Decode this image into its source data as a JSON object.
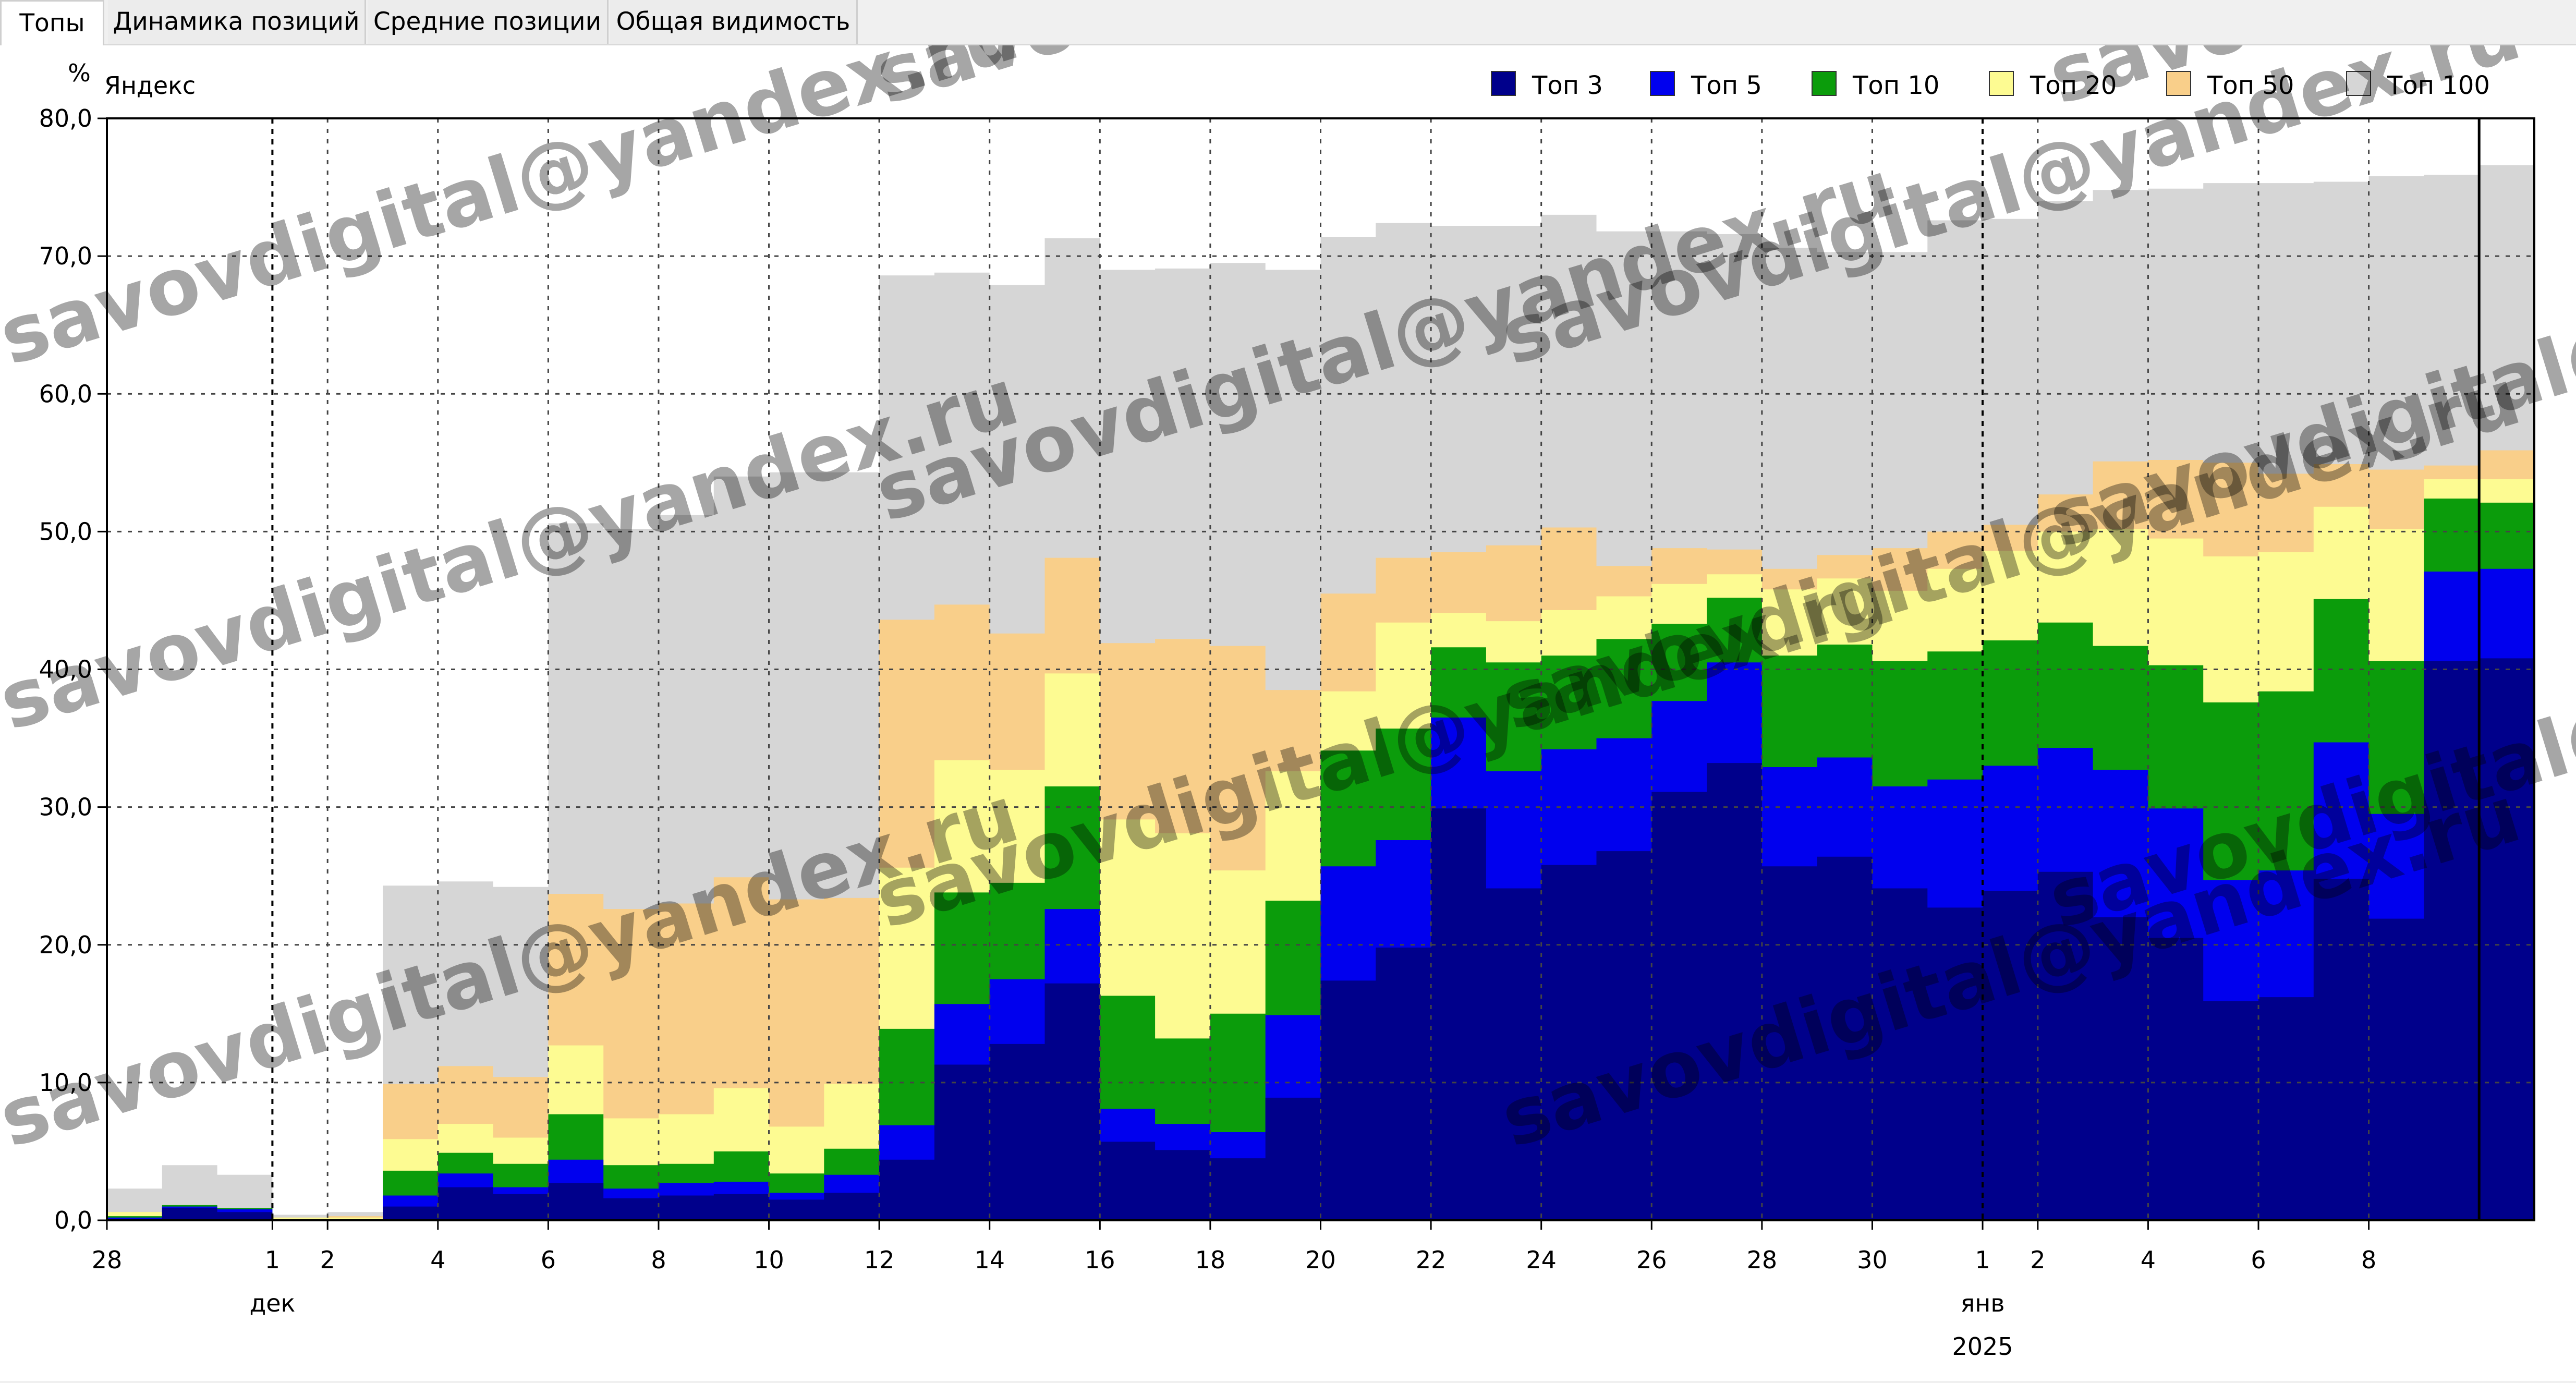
{
  "tabs": [
    {
      "label": "Топы",
      "active": true
    },
    {
      "label": "Динамика позиций",
      "active": false
    },
    {
      "label": "Средние позиции",
      "active": false
    },
    {
      "label": "Общая видимость",
      "active": false
    }
  ],
  "watermark": "savovdigital@yandex.ru",
  "chart_data": {
    "type": "area",
    "stacked": false,
    "step": true,
    "title": "Яндекс",
    "ylabel": "%",
    "ylim": [
      0,
      80
    ],
    "y_ticks": [
      "0,0",
      "10,0",
      "20,0",
      "30,0",
      "40,0",
      "50,0",
      "60,0",
      "70,0",
      "80,0"
    ],
    "x": [
      "2024-11-28",
      "2024-11-29",
      "2024-11-30",
      "2024-12-01",
      "2024-12-02",
      "2024-12-03",
      "2024-12-04",
      "2024-12-05",
      "2024-12-06",
      "2024-12-07",
      "2024-12-08",
      "2024-12-09",
      "2024-12-10",
      "2024-12-11",
      "2024-12-12",
      "2024-12-13",
      "2024-12-14",
      "2024-12-15",
      "2024-12-15",
      "2024-12-16",
      "2024-12-17",
      "2024-12-18",
      "2024-12-19",
      "2024-12-20",
      "2024-12-21",
      "2024-12-22",
      "2024-12-23",
      "2024-12-24",
      "2024-12-25",
      "2024-12-26",
      "2024-12-27",
      "2024-12-28",
      "2024-12-29",
      "2024-12-30",
      "2024-12-31",
      "2025-01-01",
      "2025-01-02",
      "2025-01-03",
      "2025-01-04",
      "2025-01-05",
      "2025-01-06",
      "2025-01-07",
      "2025-01-08",
      "2025-01-09",
      "2025-01-10"
    ],
    "x_ticks": [
      {
        "date": "2024-11-28",
        "label": "28"
      },
      {
        "date": "2024-12-01",
        "label": "1"
      },
      {
        "date": "2024-12-02",
        "label": "2"
      },
      {
        "date": "2024-12-04",
        "label": "4"
      },
      {
        "date": "2024-12-06",
        "label": "6"
      },
      {
        "date": "2024-12-08",
        "label": "8"
      },
      {
        "date": "2024-12-10",
        "label": "10"
      },
      {
        "date": "2024-12-12",
        "label": "12"
      },
      {
        "date": "2024-12-14",
        "label": "14"
      },
      {
        "date": "2024-12-16",
        "label": "16"
      },
      {
        "date": "2024-12-18",
        "label": "18"
      },
      {
        "date": "2024-12-20",
        "label": "20"
      },
      {
        "date": "2024-12-22",
        "label": "22"
      },
      {
        "date": "2024-12-24",
        "label": "24"
      },
      {
        "date": "2024-12-26",
        "label": "26"
      },
      {
        "date": "2024-12-28",
        "label": "28"
      },
      {
        "date": "2024-12-30",
        "label": "30"
      },
      {
        "date": "2025-01-01",
        "label": "1"
      },
      {
        "date": "2025-01-02",
        "label": "2"
      },
      {
        "date": "2025-01-04",
        "label": "4"
      },
      {
        "date": "2025-01-06",
        "label": "6"
      },
      {
        "date": "2025-01-08",
        "label": "8"
      }
    ],
    "month_labels": [
      {
        "date": "2024-12-01",
        "label": "дек"
      },
      {
        "date": "2025-01-01",
        "label": "янв"
      }
    ],
    "year_labels": [
      {
        "date": "2025-01-01",
        "label": "2025"
      }
    ],
    "month_boundaries": [
      "2024-12-01",
      "2025-01-01"
    ],
    "current_marker": "2025-01-10",
    "grid": true,
    "legend_position": "top-right",
    "series": [
      {
        "name": "Топ 100",
        "color": "#d6d6d6",
        "values": [
          2.3,
          4.0,
          3.3,
          0.4,
          0.6,
          24.3,
          24.6,
          24.2,
          50.6,
          50.2,
          51.2,
          54.0,
          54.3,
          54.3,
          68.6,
          68.8,
          67.9,
          71.3,
          71.3,
          69.0,
          69.1,
          69.5,
          69.0,
          71.4,
          72.4,
          72.2,
          72.2,
          73.0,
          71.8,
          71.8,
          71.6,
          70.6,
          70.3,
          70.3,
          72.6,
          72.7,
          74.0,
          74.8,
          74.9,
          75.3,
          75.3,
          75.4,
          75.8,
          75.9,
          76.6
        ]
      },
      {
        "name": "Топ 50",
        "color": "#f9cf8a",
        "values": [
          0.6,
          0.8,
          0.7,
          0.2,
          0.3,
          9.9,
          11.2,
          10.4,
          23.7,
          22.6,
          23.0,
          24.9,
          23.3,
          23.4,
          43.6,
          44.7,
          42.6,
          48.1,
          48.1,
          41.9,
          42.2,
          41.7,
          38.5,
          45.5,
          48.1,
          48.5,
          49.0,
          50.3,
          47.5,
          48.8,
          48.7,
          47.3,
          48.3,
          48.8,
          50.0,
          50.5,
          52.7,
          55.1,
          55.2,
          55.0,
          54.2,
          54.9,
          54.5,
          54.8,
          55.9
        ]
      },
      {
        "name": "Топ 20",
        "color": "#fdfb92",
        "values": [
          0.6,
          0.8,
          0.7,
          0.2,
          0.2,
          5.9,
          7.0,
          6.0,
          12.7,
          7.4,
          7.7,
          9.6,
          6.8,
          9.9,
          25.6,
          33.4,
          32.7,
          39.7,
          39.7,
          29.1,
          28.1,
          25.4,
          32.6,
          38.4,
          43.4,
          44.1,
          43.5,
          44.3,
          45.3,
          46.2,
          46.9,
          45.8,
          46.6,
          45.7,
          47.3,
          48.6,
          50.0,
          50.2,
          49.5,
          48.2,
          48.5,
          51.8,
          50.2,
          53.8,
          53.8
        ]
      },
      {
        "name": "Топ 10",
        "color": "#0b9c0b",
        "values": [
          0.3,
          1.1,
          0.9,
          0.0,
          0.0,
          3.6,
          4.9,
          4.1,
          7.7,
          4.0,
          4.1,
          5.0,
          3.4,
          5.2,
          13.9,
          23.8,
          24.5,
          31.5,
          31.5,
          16.3,
          13.2,
          15.0,
          23.2,
          34.1,
          35.7,
          41.6,
          40.5,
          41.0,
          42.2,
          43.3,
          45.2,
          41.0,
          41.8,
          40.6,
          41.3,
          42.1,
          43.4,
          41.7,
          40.3,
          37.6,
          38.4,
          45.1,
          40.6,
          52.4,
          52.1
        ]
      },
      {
        "name": "Топ 5",
        "color": "#0000ee",
        "values": [
          0.2,
          1.0,
          0.8,
          0.0,
          0.0,
          1.8,
          3.4,
          2.4,
          4.4,
          2.3,
          2.7,
          2.8,
          2.0,
          3.3,
          6.9,
          15.7,
          17.5,
          22.6,
          22.6,
          8.1,
          7.0,
          6.4,
          14.9,
          25.7,
          27.6,
          36.5,
          32.6,
          34.2,
          35.0,
          37.7,
          40.5,
          32.9,
          33.6,
          31.5,
          32.0,
          33.0,
          34.3,
          32.7,
          29.9,
          24.7,
          25.4,
          34.7,
          29.5,
          47.1,
          47.3
        ]
      },
      {
        "name": "Топ 3",
        "color": "#00008b",
        "values": [
          0.1,
          0.9,
          0.6,
          0.0,
          0.0,
          1.0,
          2.4,
          1.9,
          2.7,
          1.6,
          1.8,
          1.9,
          1.5,
          2.0,
          4.4,
          11.3,
          12.8,
          17.2,
          17.2,
          5.7,
          5.1,
          4.5,
          8.9,
          17.4,
          19.8,
          29.9,
          24.1,
          25.8,
          26.8,
          31.1,
          33.2,
          25.7,
          26.4,
          24.1,
          22.7,
          23.9,
          25.3,
          22.0,
          20.5,
          15.9,
          16.2,
          24.8,
          21.9,
          40.6,
          40.8
        ]
      }
    ]
  }
}
